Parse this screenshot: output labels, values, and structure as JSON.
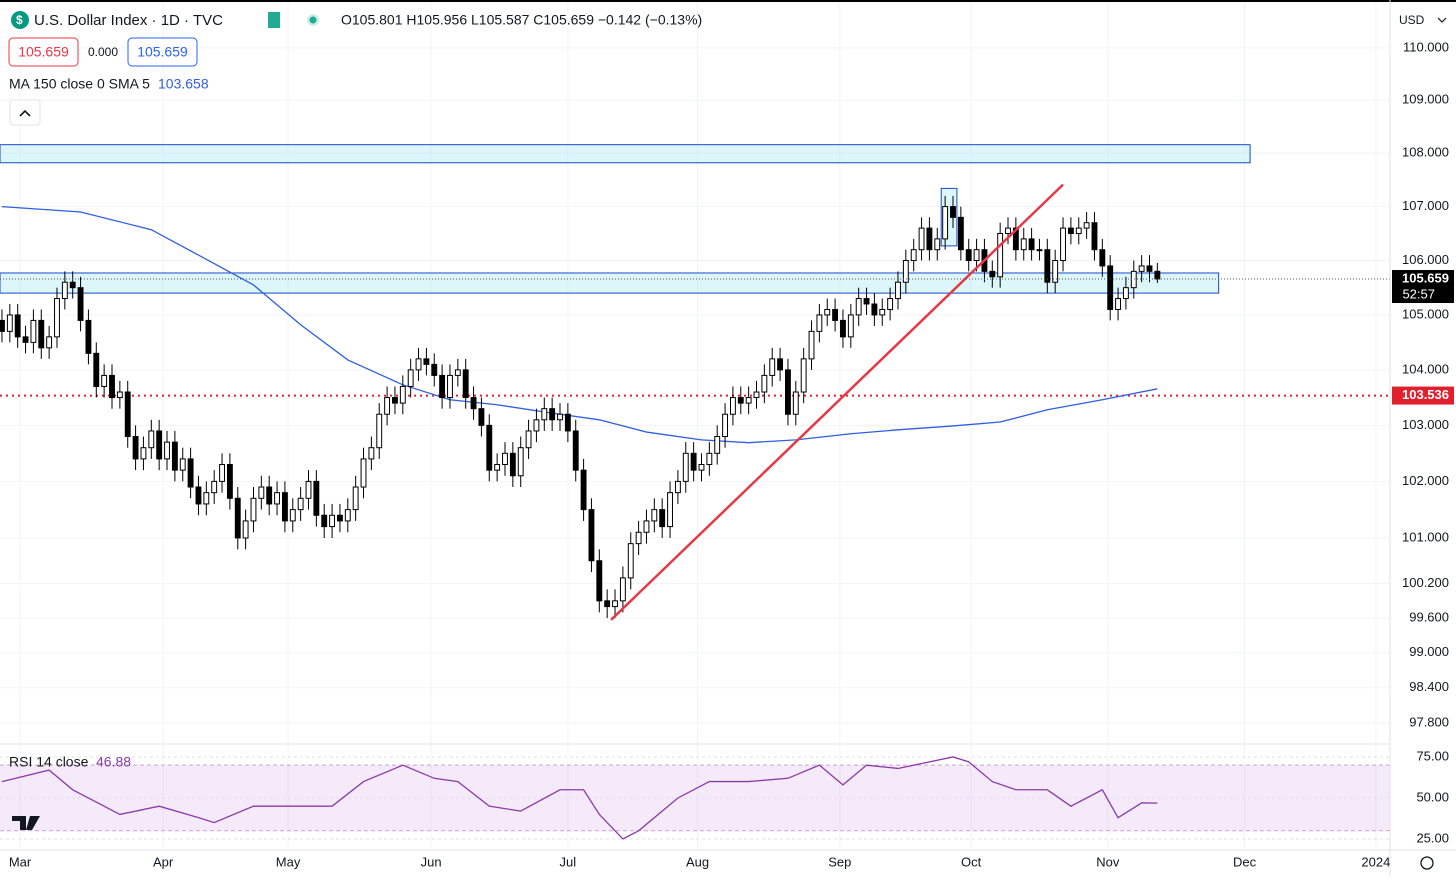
{
  "header": {
    "symbol": "U.S. Dollar Index · 1D · TVC",
    "ohlc": "O105.801 H105.956 L105.587 C105.659 −0.142 (−0.13%)",
    "spread": "0.000",
    "indicator": "MA 150 close 0 SMA 5",
    "currency": "USD",
    "countdown": "52:57"
  },
  "chart_data": {
    "type": "candlestick",
    "log_scale": true,
    "grid": true,
    "up_color": "#ffffff",
    "down_color": "#000000",
    "xlim": [
      -0.25,
      176.6
    ],
    "ylim": [
      97.44,
      110.92
    ],
    "xticks": [
      {
        "value": 2.3,
        "label": "Mar"
      },
      {
        "value": 20.5,
        "label": "Apr"
      },
      {
        "value": 36.4,
        "label": "May"
      },
      {
        "value": 54.6,
        "label": "Jun"
      },
      {
        "value": 72,
        "label": "Jul"
      },
      {
        "value": 88.5,
        "label": "Aug"
      },
      {
        "value": 106.6,
        "label": "Sep"
      },
      {
        "value": 123.3,
        "label": "Oct"
      },
      {
        "value": 140.7,
        "label": "Nov"
      },
      {
        "value": 158.1,
        "label": "Dec"
      },
      {
        "value": 174.8,
        "label": "2024"
      }
    ],
    "yticks": [
      {
        "value": 110,
        "label": "110.000"
      },
      {
        "value": 109,
        "label": "109.000"
      },
      {
        "value": 108,
        "label": "108.000"
      },
      {
        "value": 107,
        "label": "107.000"
      },
      {
        "value": 106,
        "label": "106.000"
      },
      {
        "value": 105,
        "label": "105.000"
      },
      {
        "value": 104,
        "label": "104.000"
      },
      {
        "value": 103,
        "label": "103.000"
      },
      {
        "value": 102,
        "label": "102.000"
      },
      {
        "value": 101,
        "label": "101.000"
      },
      {
        "value": 100.2,
        "label": "100.200"
      },
      {
        "value": 99.6,
        "label": "99.600"
      },
      {
        "value": 99,
        "label": "99.000"
      },
      {
        "value": 98.4,
        "label": "98.400"
      },
      {
        "value": 97.8,
        "label": "97.800"
      }
    ],
    "open": [
      104.9,
      104.7,
      105.0,
      104.6,
      104.5,
      104.9,
      104.4,
      104.6,
      105.3,
      105.6,
      105.5,
      104.9,
      104.3,
      103.7,
      103.9,
      103.5,
      103.6,
      102.8,
      102.4,
      102.6,
      102.9,
      102.4,
      102.7,
      102.2,
      102.4,
      101.9,
      101.6,
      101.8,
      102.0,
      102.3,
      101.7,
      101.0,
      101.3,
      101.7,
      101.9,
      101.6,
      101.8,
      101.3,
      101.5,
      101.7,
      102.0,
      101.4,
      101.2,
      101.4,
      101.3,
      101.5,
      101.9,
      102.4,
      102.6,
      103.2,
      103.5,
      103.4,
      103.7,
      104.0,
      104.2,
      104.1,
      103.9,
      103.5,
      103.9,
      104.0,
      103.5,
      103.3,
      103.0,
      102.2,
      102.3,
      102.5,
      102.1,
      102.6,
      102.9,
      103.1,
      103.3,
      103.1,
      103.2,
      102.9,
      102.2,
      101.5,
      100.6,
      99.9,
      99.8,
      99.9,
      100.3,
      100.9,
      101.1,
      101.3,
      101.5,
      101.2,
      101.8,
      102.0,
      102.5,
      102.2,
      102.3,
      102.5,
      102.8,
      103.2,
      103.5,
      103.4,
      103.5,
      103.6,
      103.9,
      104.2,
      104.0,
      103.2,
      103.6,
      104.2,
      104.7,
      105.0,
      105.1,
      104.9,
      104.6,
      105.0,
      105.3,
      105.2,
      105.0,
      105.1,
      105.3,
      105.6,
      106.0,
      106.2,
      106.6,
      106.2,
      106.4,
      107.0,
      106.8,
      106.2,
      106.0,
      106.2,
      105.8,
      105.7,
      106.5,
      106.6,
      106.2,
      106.4,
      106.2,
      106.2,
      105.6,
      106.0,
      106.6,
      106.5,
      106.6,
      106.7,
      106.2,
      105.9,
      105.1,
      105.3,
      105.5,
      105.8,
      105.9,
      105.801
    ],
    "high": [
      105.1,
      105.2,
      105.2,
      104.8,
      105.1,
      105.1,
      104.8,
      105.5,
      105.8,
      105.8,
      105.7,
      105.1,
      104.5,
      104.1,
      104.1,
      103.8,
      103.8,
      103.0,
      102.8,
      103.1,
      103.1,
      102.9,
      102.9,
      102.6,
      102.6,
      102.1,
      102.0,
      102.2,
      102.5,
      102.5,
      101.9,
      101.5,
      101.9,
      102.1,
      102.1,
      102.0,
      102.0,
      101.7,
      101.9,
      102.2,
      102.2,
      101.6,
      101.6,
      101.6,
      101.7,
      102.1,
      102.6,
      102.8,
      103.4,
      103.7,
      103.7,
      103.9,
      104.2,
      104.4,
      104.4,
      104.3,
      104.1,
      104.1,
      104.2,
      104.2,
      103.7,
      103.5,
      103.2,
      102.5,
      102.7,
      102.7,
      102.8,
      103.1,
      103.3,
      103.5,
      103.5,
      103.4,
      103.4,
      103.1,
      102.4,
      101.7,
      100.8,
      100.1,
      100.1,
      100.5,
      101.1,
      101.3,
      101.5,
      101.7,
      101.7,
      102.0,
      102.2,
      102.7,
      102.7,
      102.5,
      102.7,
      103.0,
      103.4,
      103.7,
      103.7,
      103.7,
      103.8,
      104.1,
      104.4,
      104.4,
      104.2,
      103.8,
      104.4,
      104.9,
      105.2,
      105.3,
      105.3,
      105.1,
      105.2,
      105.5,
      105.5,
      105.4,
      105.3,
      105.5,
      105.8,
      106.2,
      106.4,
      106.8,
      106.8,
      106.6,
      107.2,
      107.2,
      107.0,
      106.4,
      106.4,
      106.4,
      106.0,
      106.7,
      106.8,
      106.8,
      106.6,
      106.6,
      106.4,
      106.4,
      106.2,
      106.8,
      106.8,
      106.8,
      106.9,
      106.9,
      106.4,
      106.1,
      105.5,
      105.7,
      106.0,
      106.1,
      106.1,
      105.956
    ],
    "low": [
      104.5,
      104.5,
      104.4,
      104.3,
      104.3,
      104.2,
      104.2,
      104.4,
      105.1,
      105.3,
      104.7,
      104.1,
      103.5,
      103.5,
      103.3,
      103.3,
      102.6,
      102.2,
      102.2,
      102.4,
      102.2,
      102.2,
      102.0,
      102.0,
      101.7,
      101.4,
      101.4,
      101.6,
      101.8,
      101.5,
      100.8,
      100.8,
      101.1,
      101.5,
      101.4,
      101.4,
      101.1,
      101.1,
      101.3,
      101.5,
      101.2,
      101.0,
      101.0,
      101.1,
      101.1,
      101.3,
      101.7,
      102.2,
      102.4,
      103.0,
      103.2,
      103.2,
      103.5,
      103.8,
      103.9,
      103.7,
      103.3,
      103.3,
      103.7,
      103.3,
      103.1,
      102.8,
      102.0,
      102.0,
      102.1,
      101.9,
      101.9,
      102.4,
      102.7,
      102.9,
      102.9,
      102.9,
      102.7,
      102.0,
      101.3,
      100.4,
      99.7,
      99.6,
      99.6,
      99.7,
      100.1,
      100.7,
      100.9,
      101.1,
      101.0,
      101.0,
      101.6,
      101.8,
      102.0,
      102.0,
      102.1,
      102.3,
      102.6,
      103.0,
      103.2,
      103.2,
      103.3,
      103.4,
      103.7,
      103.8,
      103.0,
      103.0,
      103.4,
      104.0,
      104.5,
      104.8,
      104.7,
      104.4,
      104.4,
      104.8,
      105.0,
      104.8,
      104.8,
      104.9,
      105.1,
      105.4,
      105.8,
      106.0,
      106.0,
      106.0,
      106.2,
      106.6,
      106.0,
      105.8,
      105.8,
      105.6,
      105.5,
      105.5,
      106.3,
      106.0,
      106.0,
      106.0,
      106.0,
      105.4,
      105.4,
      105.8,
      106.3,
      106.3,
      106.4,
      106.0,
      105.7,
      104.9,
      104.9,
      105.1,
      105.3,
      105.6,
      105.6,
      105.587
    ],
    "close": [
      104.7,
      105.0,
      104.6,
      104.5,
      104.9,
      104.4,
      104.6,
      105.3,
      105.6,
      105.5,
      104.9,
      104.3,
      103.7,
      103.9,
      103.5,
      103.6,
      102.8,
      102.4,
      102.6,
      102.9,
      102.4,
      102.7,
      102.2,
      102.4,
      101.9,
      101.6,
      101.8,
      102.0,
      102.3,
      101.7,
      101.0,
      101.3,
      101.7,
      101.9,
      101.6,
      101.8,
      101.3,
      101.5,
      101.7,
      102.0,
      101.4,
      101.2,
      101.4,
      101.3,
      101.5,
      101.9,
      102.4,
      102.6,
      103.2,
      103.5,
      103.4,
      103.7,
      104.0,
      104.2,
      104.1,
      103.9,
      103.5,
      103.9,
      104.0,
      103.5,
      103.3,
      103.0,
      102.2,
      102.3,
      102.5,
      102.1,
      102.6,
      102.9,
      103.1,
      103.3,
      103.1,
      103.2,
      102.9,
      102.2,
      101.5,
      100.6,
      99.9,
      99.8,
      99.9,
      100.3,
      100.9,
      101.1,
      101.3,
      101.5,
      101.2,
      101.8,
      102.0,
      102.5,
      102.2,
      102.3,
      102.5,
      102.8,
      103.2,
      103.5,
      103.4,
      103.5,
      103.6,
      103.9,
      104.2,
      104.0,
      103.2,
      103.6,
      104.2,
      104.7,
      105.0,
      105.1,
      104.9,
      104.6,
      105.0,
      105.3,
      105.2,
      105.0,
      105.1,
      105.3,
      105.6,
      106.0,
      106.2,
      106.6,
      106.2,
      106.4,
      107.0,
      106.8,
      106.2,
      106.0,
      106.2,
      105.8,
      105.7,
      106.5,
      106.6,
      106.2,
      106.4,
      106.2,
      106.2,
      105.6,
      106.0,
      106.6,
      106.5,
      106.6,
      106.7,
      106.2,
      105.9,
      105.1,
      105.3,
      105.5,
      105.8,
      105.9,
      105.801,
      105.659
    ],
    "ma": {
      "color": "#2f5fe0",
      "x": [
        0,
        10,
        19,
        25,
        32,
        38,
        44,
        51,
        57,
        63,
        70,
        76,
        82,
        89,
        95,
        101,
        108,
        114,
        121,
        127,
        133,
        140,
        147
      ],
      "values": [
        107.0,
        106.9,
        106.57,
        106.1,
        105.55,
        104.82,
        104.18,
        103.73,
        103.46,
        103.37,
        103.22,
        103.1,
        102.88,
        102.74,
        102.69,
        102.74,
        102.85,
        102.92,
        102.99,
        103.06,
        103.28,
        103.46,
        103.658
      ]
    },
    "zones": [
      {
        "x": [
          -0.25,
          158.8
        ],
        "y": [
          107.82,
          108.16
        ]
      },
      {
        "x": [
          -0.25,
          154.8
        ],
        "y": [
          105.4,
          105.77
        ]
      },
      {
        "x": [
          119.5,
          121.5
        ],
        "y": [
          106.27,
          107.34
        ]
      }
    ],
    "trendline": {
      "color": "#e53945",
      "x": [
        77.5,
        135
      ],
      "y": [
        99.57,
        107.41
      ]
    },
    "support": 103.536,
    "rsi": {
      "name": "RSI 14 close",
      "color": "#8a3aa8",
      "ylim": [
        18.3,
        82.9
      ],
      "band": [
        30,
        70
      ],
      "yticks": [
        {
          "value": 75,
          "label": "75.00"
        },
        {
          "value": 50,
          "label": "50.00"
        },
        {
          "value": 25,
          "label": "25.00"
        }
      ],
      "x": [
        0,
        6,
        9,
        13,
        15,
        20,
        25,
        27,
        32,
        37,
        42,
        46,
        51,
        55,
        58,
        62,
        66,
        71,
        74,
        76,
        79,
        81,
        86,
        90,
        95,
        100,
        104,
        107,
        110,
        114,
        121,
        123,
        126,
        129,
        133,
        136,
        140,
        142,
        145,
        147
      ],
      "values": [
        60,
        67,
        55,
        45,
        40,
        45,
        38,
        35,
        45,
        45,
        45,
        60,
        70,
        62,
        60,
        45,
        42,
        55,
        55,
        40,
        25,
        30,
        50,
        60,
        60,
        62,
        70,
        58,
        70,
        68,
        75,
        72,
        60,
        55,
        55,
        45,
        55,
        38,
        47,
        46.88
      ]
    }
  }
}
